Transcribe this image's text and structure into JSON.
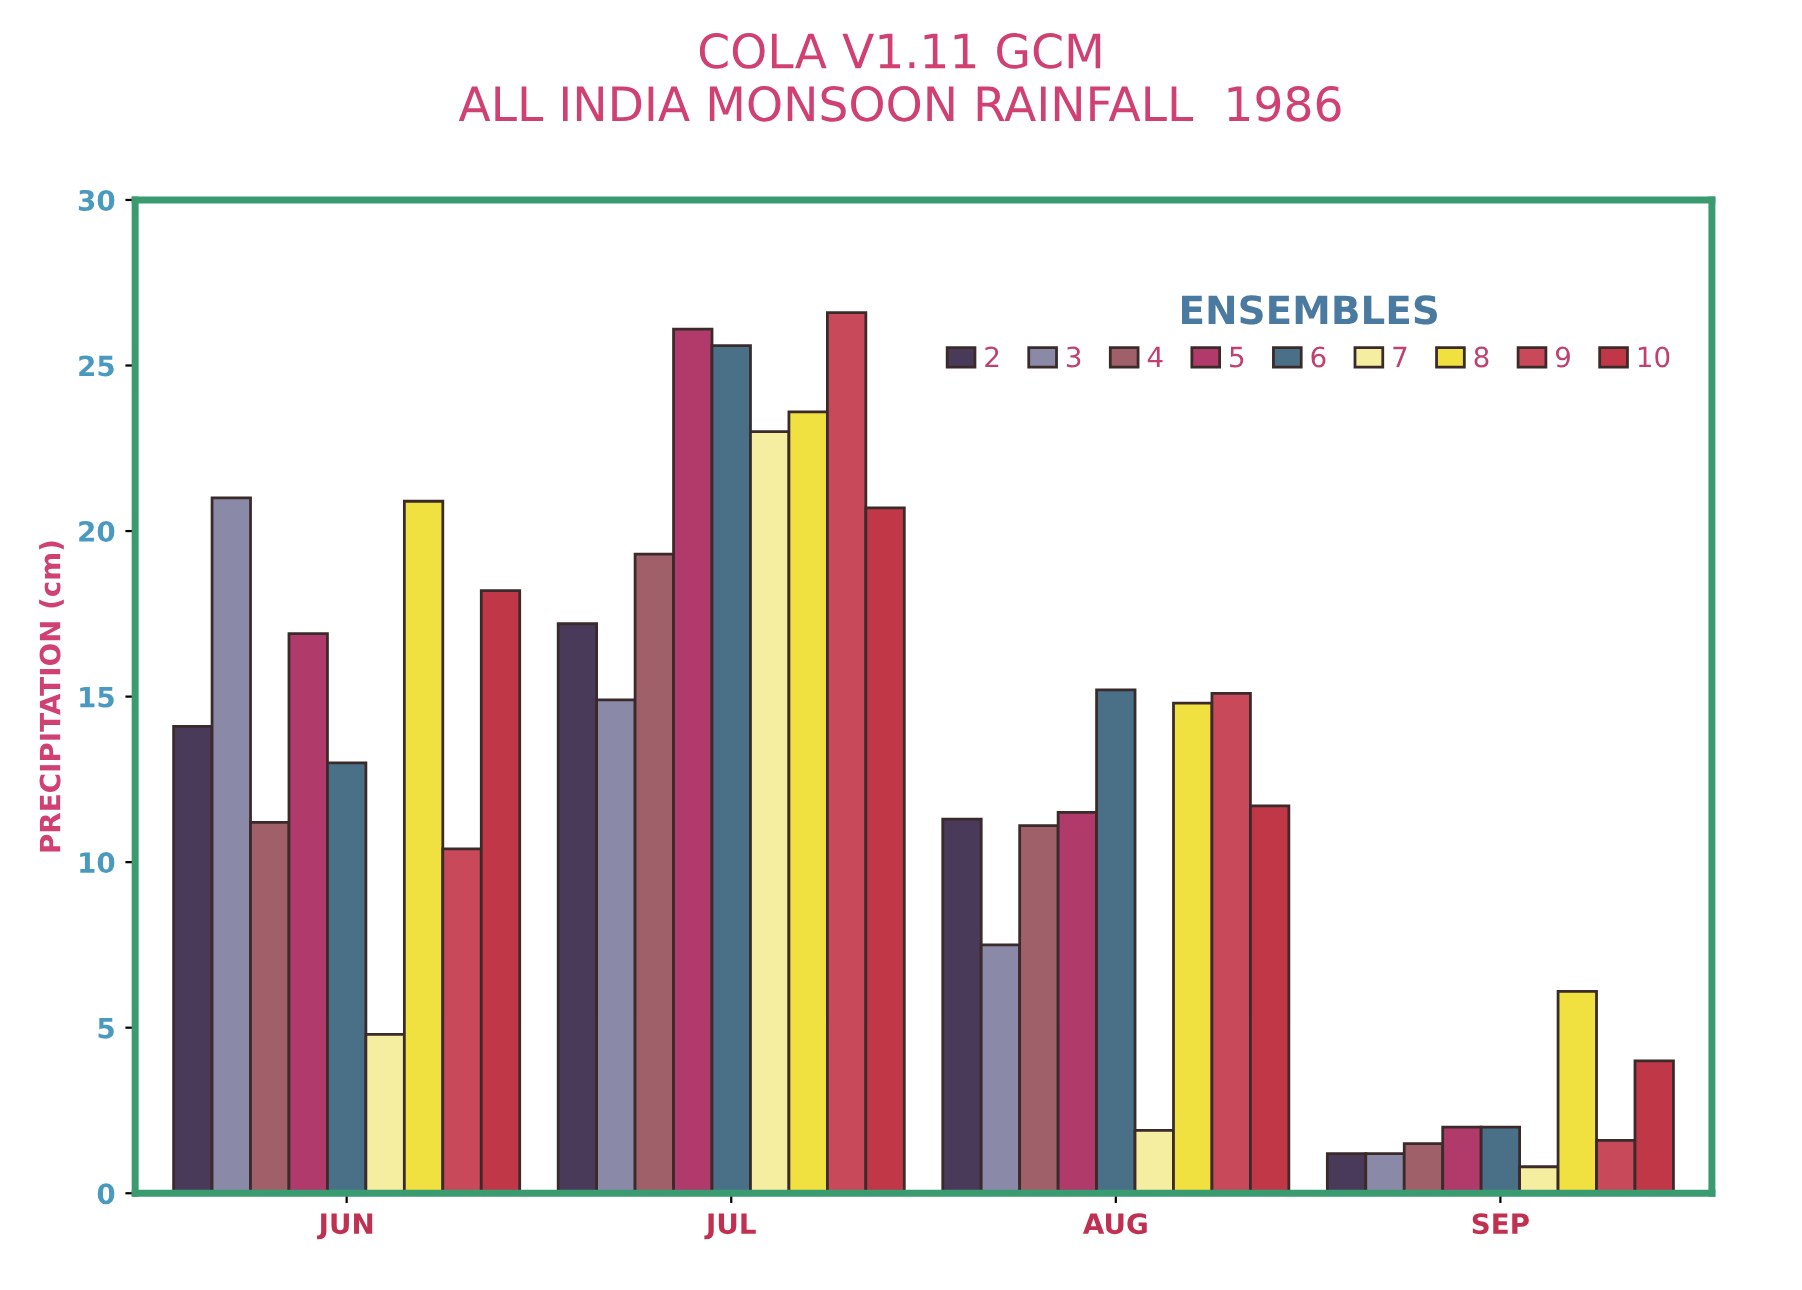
{
  "chart_data": {
    "type": "bar",
    "title": "COLA V1.11 GCM\nALL INDIA MONSOON RAINFALL  1986",
    "ylabel": "PRECIPITATION (cm)",
    "legend_title": "ENSEMBLES",
    "categories": [
      "JUN",
      "JUL",
      "AUG",
      "SEP"
    ],
    "series": [
      {
        "name": "2",
        "color": "#4a3a5a",
        "values": [
          14.1,
          17.2,
          11.3,
          1.2
        ]
      },
      {
        "name": "3",
        "color": "#8a8aa8",
        "values": [
          21.0,
          14.9,
          7.5,
          1.2
        ]
      },
      {
        "name": "4",
        "color": "#a0606a",
        "values": [
          11.2,
          19.3,
          11.1,
          1.5
        ]
      },
      {
        "name": "5",
        "color": "#b03a6a",
        "values": [
          16.9,
          26.1,
          11.5,
          2.0
        ]
      },
      {
        "name": "6",
        "color": "#4a7088",
        "values": [
          13.0,
          25.6,
          15.2,
          2.0
        ]
      },
      {
        "name": "7",
        "color": "#f5eea0",
        "values": [
          4.8,
          23.0,
          1.9,
          0.8
        ]
      },
      {
        "name": "8",
        "color": "#f0e040",
        "values": [
          20.9,
          23.6,
          14.8,
          6.1
        ]
      },
      {
        "name": "9",
        "color": "#c84a5a",
        "values": [
          10.4,
          26.6,
          15.1,
          1.6
        ]
      },
      {
        "name": "10",
        "color": "#c03848",
        "values": [
          18.2,
          20.7,
          11.7,
          4.0
        ]
      }
    ],
    "ylim": [
      0,
      30
    ],
    "yticks": [
      0,
      5,
      10,
      15,
      20,
      25,
      30
    ],
    "grid": false,
    "legend": "top right"
  }
}
